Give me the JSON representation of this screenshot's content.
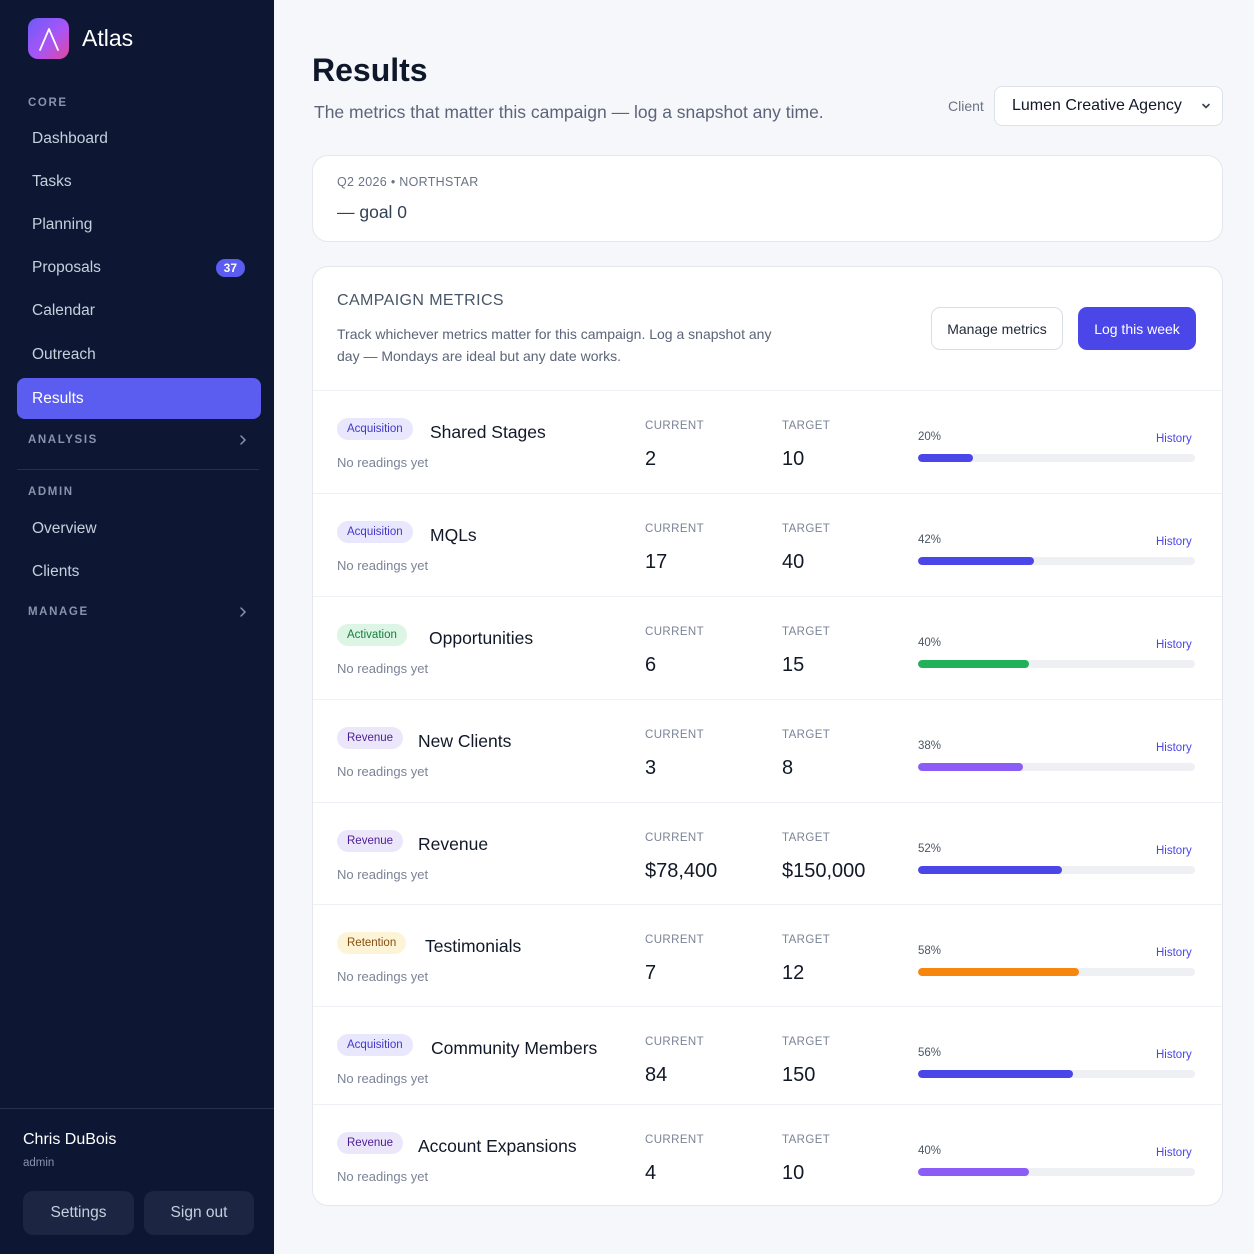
{
  "app": {
    "name": "Atlas"
  },
  "sidebar": {
    "core_label": "CORE",
    "core_items": [
      {
        "label": "Dashboard"
      },
      {
        "label": "Tasks"
      },
      {
        "label": "Planning"
      },
      {
        "label": "Proposals",
        "badge": "37"
      },
      {
        "label": "Calendar"
      },
      {
        "label": "Outreach"
      },
      {
        "label": "Results"
      }
    ],
    "analysis_label": "ANALYSIS",
    "admin_label": "ADMIN",
    "admin_items": [
      {
        "label": "Overview"
      },
      {
        "label": "Clients"
      }
    ],
    "manage_label": "MANAGE",
    "user": {
      "name": "Chris DuBois",
      "role": "admin"
    },
    "settings_label": "Settings",
    "signout_label": "Sign out"
  },
  "page": {
    "title": "Results",
    "subtitle": "The metrics that matter this campaign — log a snapshot any time.",
    "client_label": "Client",
    "client_value": "Lumen Creative Agency"
  },
  "northstar": {
    "label": "Q2 2026 • NORTHSTAR",
    "goal": "— goal 0"
  },
  "campaign": {
    "title": "CAMPAIGN METRICS",
    "description": "Track whichever metrics matter for this campaign. Log a snapshot any day — Mondays are ideal but any date works.",
    "manage_label": "Manage metrics",
    "log_label": "Log this week",
    "current_label": "CURRENT",
    "target_label": "TARGET",
    "readings_text": "No readings yet",
    "history_label": "History"
  },
  "colors": {
    "acquisition_tag_bg": "#e9e7fd",
    "acquisition_tag_fg": "#4338ca",
    "activation_tag_bg": "#dcf5e5",
    "activation_tag_fg": "#15803d",
    "revenue_tag_bg": "#ece6fb",
    "revenue_tag_fg": "#4c1d95",
    "retention_tag_bg": "#fdf4d8",
    "retention_tag_fg": "#854d0e",
    "bar_indigo": "#4a46e8",
    "bar_green": "#22b05a",
    "bar_violet": "#8b5cf6",
    "bar_orange": "#f7860f"
  },
  "metrics": [
    {
      "tag": "Acquisition",
      "name": "Shared Stages",
      "current": "2",
      "target": "10",
      "pct_label": "20%",
      "progress": 0.2,
      "bar_color": "#4a46e8",
      "tag_bg": "#e9e7fd",
      "tag_fg": "#4338ca"
    },
    {
      "tag": "Acquisition",
      "name": "MQLs",
      "current": "17",
      "target": "40",
      "pct_label": "42%",
      "progress": 0.42,
      "bar_color": "#4a46e8",
      "tag_bg": "#e9e7fd",
      "tag_fg": "#4338ca"
    },
    {
      "tag": "Activation",
      "name": "Opportunities",
      "current": "6",
      "target": "15",
      "pct_label": "40%",
      "progress": 0.4,
      "bar_color": "#22b05a",
      "tag_bg": "#dcf5e5",
      "tag_fg": "#15803d"
    },
    {
      "tag": "Revenue",
      "name": "New Clients",
      "current": "3",
      "target": "8",
      "pct_label": "38%",
      "progress": 0.38,
      "bar_color": "#8b5cf6",
      "tag_bg": "#ece6fb",
      "tag_fg": "#4c1d95"
    },
    {
      "tag": "Revenue",
      "name": "Revenue",
      "current": "$78,400",
      "target": "$150,000",
      "pct_label": "52%",
      "progress": 0.52,
      "bar_color": "#4a46e8",
      "tag_bg": "#ece6fb",
      "tag_fg": "#4c1d95"
    },
    {
      "tag": "Retention",
      "name": "Testimonials",
      "current": "7",
      "target": "12",
      "pct_label": "58%",
      "progress": 0.58,
      "bar_color": "#f7860f",
      "tag_bg": "#fdf4d8",
      "tag_fg": "#854d0e"
    },
    {
      "tag": "Acquisition",
      "name": "Community Members",
      "current": "84",
      "target": "150",
      "pct_label": "56%",
      "progress": 0.56,
      "bar_color": "#4a46e8",
      "tag_bg": "#e9e7fd",
      "tag_fg": "#4338ca"
    },
    {
      "tag": "Revenue",
      "name": "Account Expansions",
      "current": "4",
      "target": "10",
      "pct_label": "40%",
      "progress": 0.4,
      "bar_color": "#8b5cf6",
      "tag_bg": "#ece6fb",
      "tag_fg": "#4c1d95"
    }
  ]
}
